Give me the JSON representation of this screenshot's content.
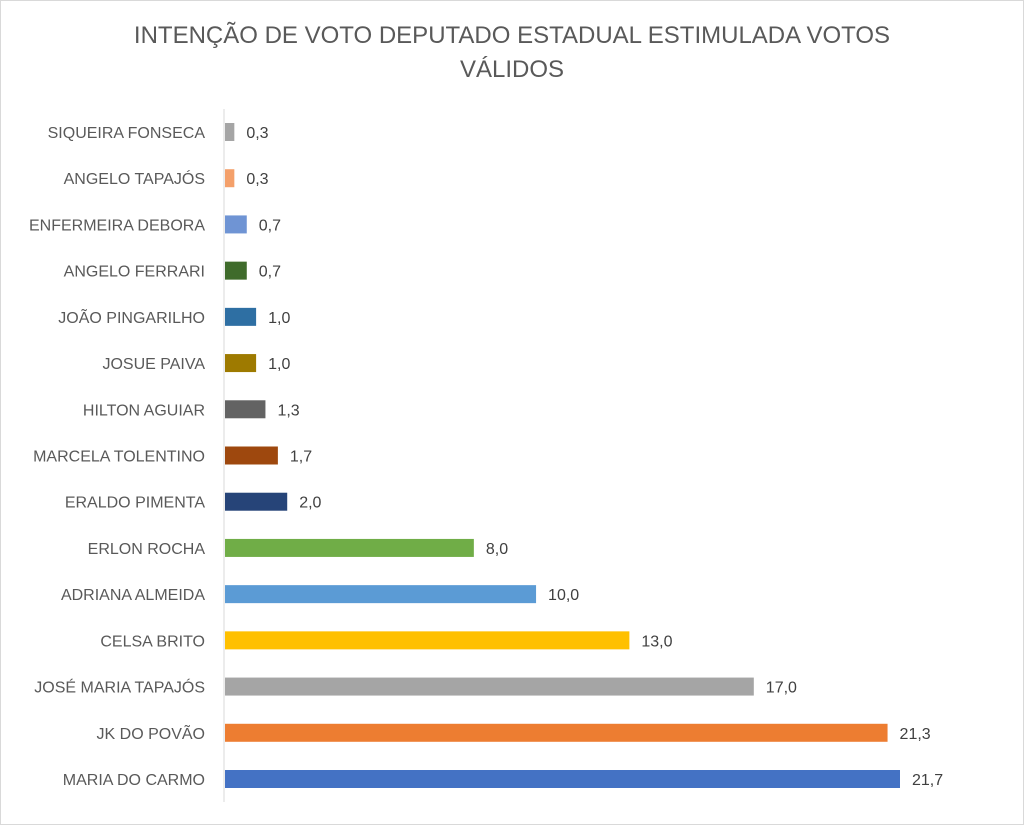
{
  "chart_data": {
    "type": "bar",
    "orientation": "horizontal",
    "title_lines": [
      "INTENÇÃO DE VOTO DEPUTADO ESTADUAL ESTIMULADA VOTOS",
      "VÁLIDOS"
    ],
    "categories": [
      "SIQUEIRA FONSECA",
      "ANGELO TAPAJÓS",
      "ENFERMEIRA DEBORA",
      "ANGELO FERRARI",
      "JOÃO PINGARILHO",
      "JOSUE PAIVA",
      "HILTON AGUIAR",
      "MARCELA TOLENTINO",
      "ERALDO PIMENTA",
      "ERLON ROCHA",
      "ADRIANA ALMEIDA",
      "CELSA BRITO",
      "JOSÉ MARIA TAPAJÓS",
      "JK DO POVÃO",
      "MARIA DO CARMO"
    ],
    "values": [
      0.3,
      0.3,
      0.7,
      0.7,
      1.0,
      1.0,
      1.3,
      1.7,
      2.0,
      8.0,
      10.0,
      13.0,
      17.0,
      21.3,
      21.7
    ],
    "value_labels": [
      "0,3",
      "0,3",
      "0,7",
      "0,7",
      "1,0",
      "1,0",
      "1,3",
      "1,7",
      "2,0",
      "8,0",
      "10,0",
      "13,0",
      "17,0",
      "21,3",
      "21,7"
    ],
    "colors": [
      "#a5a5a5",
      "#f4a06a",
      "#6f94d4",
      "#3f6b2b",
      "#2e6fa3",
      "#9e7a00",
      "#636363",
      "#9e480e",
      "#264478",
      "#70ad47",
      "#5b9bd5",
      "#ffc000",
      "#a5a5a5",
      "#ed7d31",
      "#4472c4"
    ],
    "xlim": [
      0,
      21.7
    ],
    "grid": false,
    "legend": "none"
  }
}
